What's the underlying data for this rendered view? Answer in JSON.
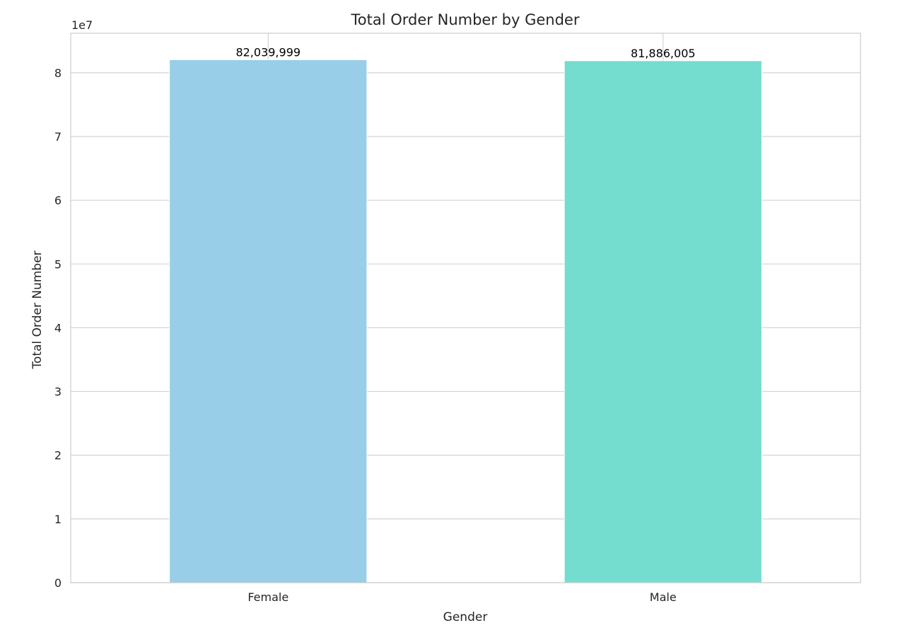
{
  "chart_data": {
    "type": "bar",
    "title": "Total Order Number by Gender",
    "xlabel": "Gender",
    "ylabel": "Total Order Number",
    "offset_label": "1e7",
    "categories": [
      "Female",
      "Male"
    ],
    "values": [
      82039999,
      81886005
    ],
    "data_labels": [
      "82,039,999",
      "81,886,005"
    ],
    "colors": [
      "#98CEE8",
      "#74DDCF"
    ],
    "ylim": [
      0,
      86200000
    ],
    "yticks": [
      0,
      10000000,
      20000000,
      30000000,
      40000000,
      50000000,
      60000000,
      70000000,
      80000000
    ],
    "ytick_labels": [
      "0",
      "1",
      "2",
      "3",
      "4",
      "5",
      "6",
      "7",
      "8"
    ],
    "grid": true,
    "grid_color": "#d3d3d3",
    "frame_color": "#cccccc"
  }
}
